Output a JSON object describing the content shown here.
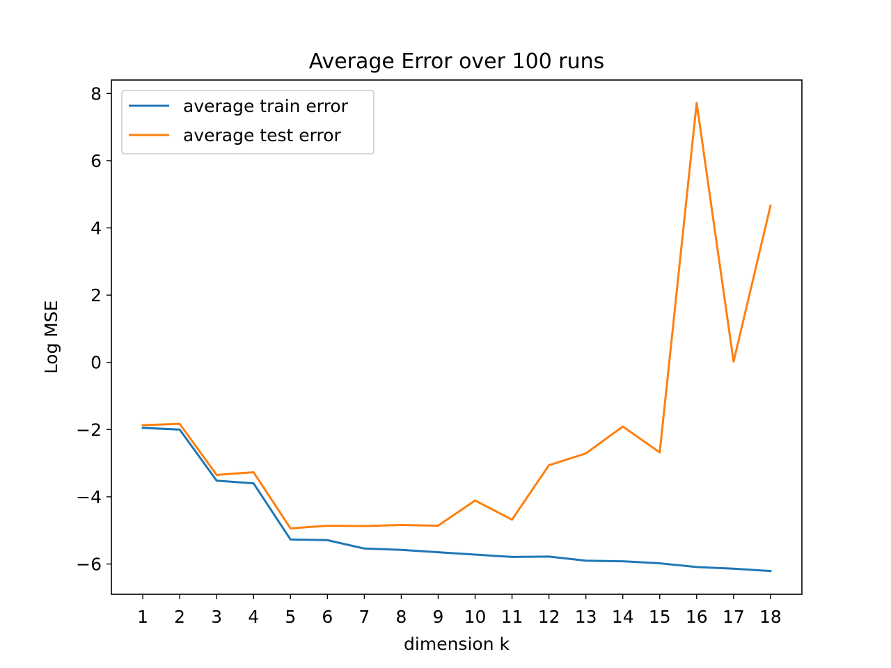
{
  "chart_data": {
    "type": "line",
    "title": "Average Error over 100 runs",
    "xlabel": "dimension k",
    "ylabel": "Log MSE",
    "x": [
      1,
      2,
      3,
      4,
      5,
      6,
      7,
      8,
      9,
      10,
      11,
      12,
      13,
      14,
      15,
      16,
      17,
      18
    ],
    "xticks": [
      "1",
      "2",
      "3",
      "4",
      "5",
      "6",
      "7",
      "8",
      "9",
      "10",
      "11",
      "12",
      "13",
      "14",
      "15",
      "16",
      "17",
      "18"
    ],
    "xlim": [
      0.15,
      18.85
    ],
    "ylim": [
      -6.9,
      8.4
    ],
    "yticks": [
      -6,
      -4,
      -2,
      0,
      2,
      4,
      6,
      8
    ],
    "ytick_labels": [
      "−6",
      "−4",
      "−2",
      "0",
      "2",
      "4",
      "6",
      "8"
    ],
    "grid": false,
    "legend_position": "upper left",
    "series": [
      {
        "name": "average train error",
        "color": "#1f77b4",
        "values": [
          -1.95,
          -2.0,
          -3.52,
          -3.6,
          -5.27,
          -5.29,
          -5.54,
          -5.58,
          -5.65,
          -5.72,
          -5.79,
          -5.78,
          -5.9,
          -5.92,
          -5.98,
          -6.09,
          -6.14,
          -6.21
        ]
      },
      {
        "name": "average test error",
        "color": "#ff7f0e",
        "values": [
          -1.87,
          -1.83,
          -3.35,
          -3.27,
          -4.94,
          -4.86,
          -4.87,
          -4.84,
          -4.86,
          -4.11,
          -4.68,
          -3.06,
          -2.71,
          -1.91,
          -2.68,
          7.72,
          0.02,
          4.66
        ]
      }
    ]
  }
}
